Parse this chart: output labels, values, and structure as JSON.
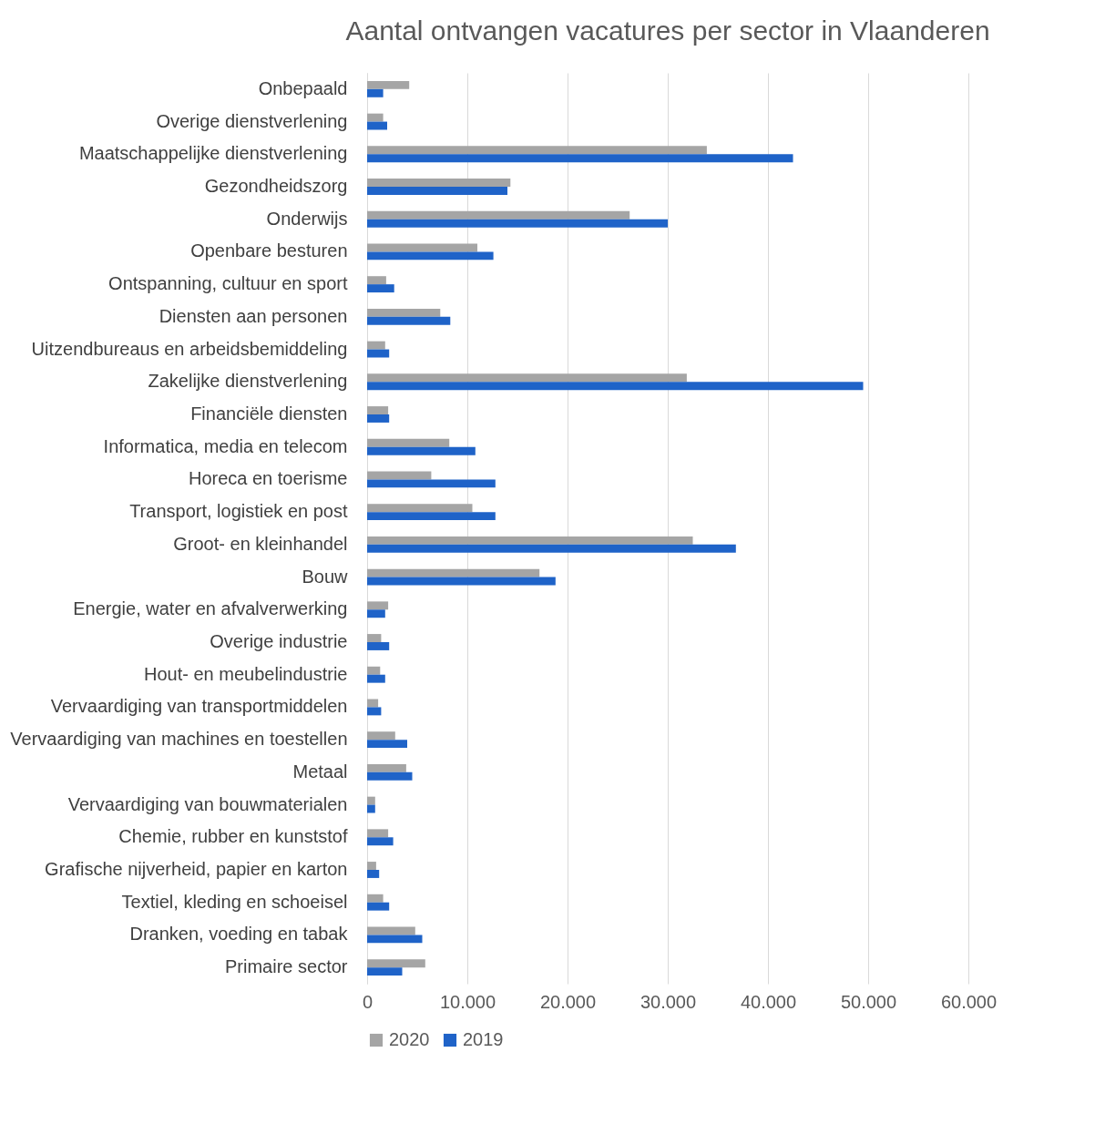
{
  "chart_data": {
    "type": "bar",
    "orientation": "horizontal",
    "title": "Aantal ontvangen vacatures per sector in Vlaanderen",
    "categories": [
      "Onbepaald",
      "Overige dienstverlening",
      "Maatschappelijke dienstverlening",
      "Gezondheidszorg",
      "Onderwijs",
      "Openbare besturen",
      "Ontspanning, cultuur en sport",
      "Diensten aan personen",
      "Uitzendbureaus en arbeidsbemiddeling",
      "Zakelijke dienstverlening",
      "Financiële diensten",
      "Informatica, media en telecom",
      "Horeca en toerisme",
      "Transport, logistiek en post",
      "Groot- en kleinhandel",
      "Bouw",
      "Energie, water en afvalverwerking",
      "Overige industrie",
      "Hout- en meubelindustrie",
      "Vervaardiging van transportmiddelen",
      "Vervaardiging van machines en toestellen",
      "Metaal",
      "Vervaardiging van bouwmaterialen",
      "Chemie, rubber en kunststof",
      "Grafische nijverheid, papier en karton",
      "Textiel, kleding en schoeisel",
      "Dranken, voeding en tabak",
      "Primaire sector"
    ],
    "series": [
      {
        "name": "2020",
        "color": "#a5a5a5",
        "values": [
          4200,
          1600,
          33900,
          14300,
          26200,
          11000,
          1900,
          7300,
          1800,
          31900,
          2100,
          8200,
          6400,
          10500,
          32500,
          17200,
          2100,
          1400,
          1300,
          1100,
          2800,
          3900,
          800,
          2100,
          900,
          1600,
          4800,
          5800
        ]
      },
      {
        "name": "2019",
        "color": "#1f63c8",
        "values": [
          1600,
          2000,
          42500,
          14000,
          30000,
          12600,
          2700,
          8300,
          2200,
          49500,
          2200,
          10800,
          12800,
          12800,
          36800,
          18800,
          1800,
          2200,
          1800,
          1400,
          4000,
          4500,
          800,
          2600,
          1200,
          2200,
          5500,
          3500
        ]
      }
    ],
    "xlim": [
      0,
      60000
    ],
    "xticks": [
      0,
      {
        "value": 10000,
        "label": "10.000"
      },
      {
        "value": 20000,
        "label": "20.000"
      },
      {
        "value": 30000,
        "label": "30.000"
      },
      {
        "value": 40000,
        "label": "40.000"
      },
      {
        "value": 50000,
        "label": "50.000"
      },
      {
        "value": 60000,
        "label": "60.000"
      }
    ],
    "grid": "x",
    "legend": "bottom"
  }
}
